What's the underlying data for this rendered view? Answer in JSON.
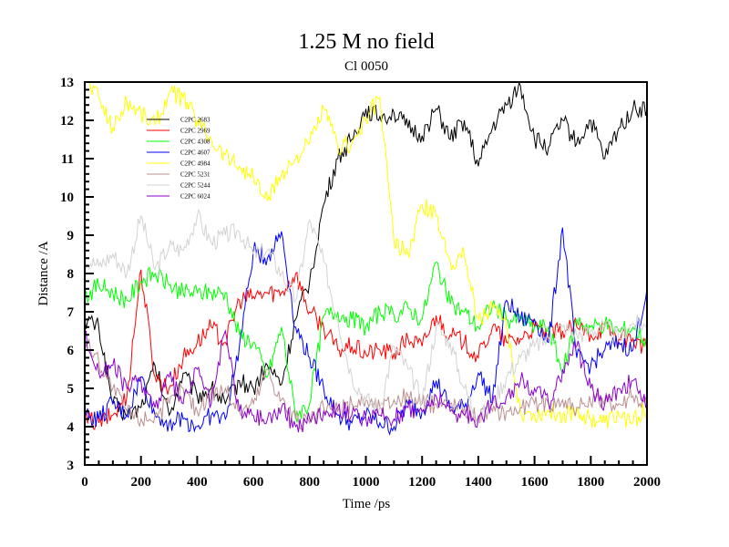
{
  "chart_data": {
    "type": "line",
    "title": "1.25 M no field",
    "subtitle": "Cl 0050",
    "xlabel": "Time /ps",
    "ylabel": "Distance /A",
    "xlim": [
      0,
      2000
    ],
    "ylim": [
      3,
      13
    ],
    "xticks": [
      0,
      200,
      400,
      600,
      800,
      1000,
      1200,
      1400,
      1600,
      1800,
      2000
    ],
    "xtick_labels": [
      "0",
      "200",
      "400",
      "600",
      "800",
      "1000",
      "1200",
      "1400",
      "1600",
      "1800",
      "2000"
    ],
    "yticks": [
      3,
      4,
      5,
      6,
      7,
      8,
      9,
      10,
      11,
      12,
      13
    ],
    "ytick_labels": [
      "3",
      "4",
      "5",
      "6",
      "7",
      "8",
      "9",
      "10",
      "11",
      "12",
      "13"
    ],
    "grid": false,
    "legend_position": "top-left",
    "x": [
      0,
      50,
      100,
      150,
      200,
      250,
      300,
      350,
      400,
      450,
      500,
      550,
      600,
      650,
      700,
      750,
      800,
      850,
      900,
      950,
      1000,
      1050,
      1100,
      1150,
      1200,
      1250,
      1300,
      1350,
      1400,
      1450,
      1500,
      1550,
      1600,
      1650,
      1700,
      1750,
      1800,
      1850,
      1900,
      1950,
      2000
    ],
    "series": [
      {
        "name": "C2PC 2683",
        "color": "#000000",
        "values": [
          6.8,
          6.6,
          4.6,
          4.3,
          4.5,
          5.6,
          4.3,
          5.4,
          4.8,
          5.0,
          4.6,
          5.2,
          5.0,
          5.6,
          5.1,
          6.8,
          7.8,
          9.8,
          11.0,
          11.5,
          12.3,
          12.1,
          12.2,
          11.8,
          11.6,
          12.3,
          11.5,
          12.0,
          10.8,
          11.8,
          12.4,
          12.9,
          11.5,
          11.3,
          12.0,
          11.4,
          12.0,
          11.0,
          11.8,
          12.3,
          12.3
        ]
      },
      {
        "name": "C2PC 2969",
        "color": "#ff0000",
        "values": [
          4.2,
          4.1,
          4.3,
          4.8,
          8.1,
          5.3,
          5.0,
          5.8,
          6.2,
          6.6,
          6.2,
          7.3,
          7.4,
          7.5,
          7.5,
          8.0,
          7.0,
          6.6,
          6.0,
          6.1,
          5.9,
          6.0,
          5.9,
          6.3,
          6.1,
          6.9,
          6.4,
          6.2,
          5.8,
          6.6,
          6.2,
          6.3,
          6.6,
          6.4,
          6.5,
          6.6,
          6.4,
          6.6,
          6.3,
          6.3,
          6.0
        ]
      },
      {
        "name": "C2PC 4308",
        "color": "#00ff00",
        "values": [
          7.4,
          7.7,
          7.5,
          7.3,
          7.8,
          8.0,
          7.7,
          7.5,
          7.5,
          7.5,
          7.5,
          6.4,
          6.2,
          5.3,
          6.6,
          4.3,
          4.6,
          6.9,
          7.0,
          6.8,
          6.6,
          7.0,
          6.9,
          7.1,
          6.8,
          8.3,
          7.2,
          7.0,
          6.6,
          7.2,
          6.8,
          6.8,
          6.6,
          6.6,
          5.4,
          6.8,
          6.6,
          6.7,
          6.5,
          6.6,
          6.2
        ]
      },
      {
        "name": "C2PC 4607",
        "color": "#0000ff",
        "values": [
          4.3,
          4.2,
          4.6,
          4.3,
          5.3,
          4.3,
          4.1,
          4.2,
          4.0,
          4.3,
          4.2,
          6.1,
          8.6,
          8.4,
          9.1,
          6.6,
          5.8,
          5.0,
          4.3,
          4.1,
          4.3,
          4.1,
          4.0,
          4.6,
          4.4,
          5.2,
          4.5,
          4.5,
          5.4,
          4.7,
          7.3,
          6.8,
          6.8,
          6.2,
          9.2,
          5.8,
          5.6,
          6.0,
          6.2,
          6.0,
          7.6
        ]
      },
      {
        "name": "C2PC 4984",
        "color": "#ffff00",
        "values": [
          13.1,
          12.6,
          11.8,
          12.5,
          12.2,
          11.9,
          12.7,
          12.6,
          12.0,
          11.5,
          11.1,
          10.8,
          10.5,
          9.9,
          10.6,
          11.0,
          11.4,
          12.3,
          11.3,
          11.4,
          12.0,
          12.6,
          8.8,
          8.5,
          9.8,
          9.5,
          8.3,
          8.5,
          6.8,
          7.1,
          6.6,
          4.4,
          4.3,
          4.4,
          4.3,
          4.4,
          4.2,
          4.1,
          4.3,
          4.1,
          4.5
        ]
      },
      {
        "name": "C2PC 5231",
        "color": "#bc8f8f",
        "values": [
          6.3,
          5.7,
          5.0,
          4.4,
          4.2,
          4.3,
          4.6,
          5.0,
          4.4,
          4.9,
          5.0,
          4.4,
          4.6,
          5.5,
          4.7,
          4.2,
          4.1,
          4.5,
          4.4,
          4.6,
          4.7,
          4.5,
          4.7,
          4.8,
          4.6,
          4.6,
          4.6,
          4.5,
          4.3,
          4.4,
          4.4,
          4.5,
          4.6,
          4.6,
          4.7,
          4.5,
          4.6,
          4.7,
          4.6,
          4.8,
          4.6
        ]
      },
      {
        "name": "C2PC 5244",
        "color": "#d3d3d3",
        "values": [
          8.4,
          8.2,
          8.5,
          8.0,
          9.5,
          8.1,
          8.7,
          8.6,
          9.5,
          8.8,
          9.0,
          9.1,
          8.5,
          8.6,
          8.0,
          7.3,
          9.4,
          8.3,
          6.8,
          5.3,
          4.7,
          4.5,
          6.1,
          5.5,
          4.7,
          6.6,
          6.2,
          5.0,
          4.2,
          4.6,
          5.3,
          5.8,
          6.1,
          6.3,
          6.6,
          6.4,
          6.5,
          6.6,
          6.3,
          6.7,
          6.6
        ]
      },
      {
        "name": "C2PC 6024",
        "color": "#8b00cc",
        "values": [
          6.4,
          5.4,
          5.6,
          5.0,
          5.2,
          4.5,
          5.3,
          4.6,
          5.5,
          4.6,
          6.5,
          4.4,
          4.3,
          4.2,
          4.5,
          4.0,
          4.2,
          4.4,
          4.5,
          4.3,
          4.2,
          4.3,
          4.2,
          4.5,
          4.4,
          4.8,
          4.4,
          4.3,
          4.2,
          4.6,
          4.8,
          5.2,
          5.0,
          4.6,
          5.5,
          6.1,
          5.0,
          4.6,
          5.0,
          5.2,
          4.6
        ]
      }
    ]
  }
}
